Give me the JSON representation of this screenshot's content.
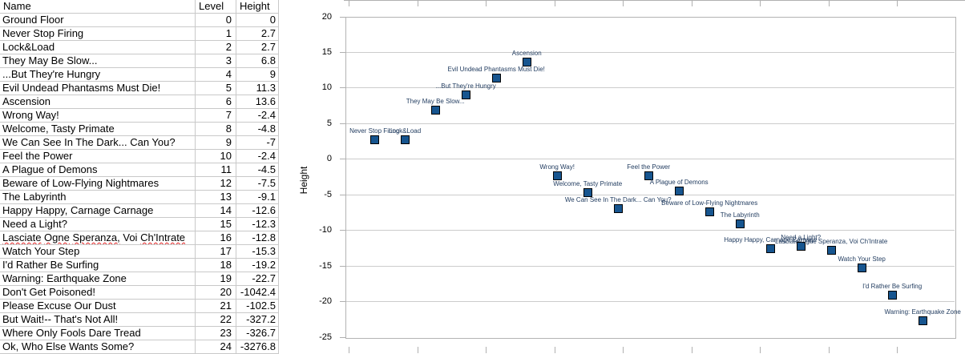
{
  "table": {
    "columns": [
      "Name",
      "Level",
      "Height"
    ],
    "rows": [
      {
        "name": "Ground Floor",
        "level": 0,
        "height": 0
      },
      {
        "name": "Never Stop Firing",
        "level": 1,
        "height": 2.7
      },
      {
        "name": "Lock&Load",
        "level": 2,
        "height": 2.7
      },
      {
        "name": "They May Be Slow...",
        "level": 3,
        "height": 6.8
      },
      {
        "name": "...But They're Hungry",
        "level": 4,
        "height": 9
      },
      {
        "name": "Evil Undead Phantasms Must Die!",
        "level": 5,
        "height": 11.3
      },
      {
        "name": "Ascension",
        "level": 6,
        "height": 13.6
      },
      {
        "name": "Wrong Way!",
        "level": 7,
        "height": -2.4
      },
      {
        "name": "Welcome, Tasty Primate",
        "level": 8,
        "height": -4.8
      },
      {
        "name": "We Can See In The Dark... Can You?",
        "level": 9,
        "height": -7
      },
      {
        "name": "Feel the Power",
        "level": 10,
        "height": -2.4
      },
      {
        "name": "A Plague of Demons",
        "level": 11,
        "height": -4.5
      },
      {
        "name": "Beware of Low-Flying Nightmares",
        "level": 12,
        "height": -7.5
      },
      {
        "name": "The Labyrinth",
        "level": 13,
        "height": -9.1
      },
      {
        "name": "Happy Happy, Carnage Carnage",
        "level": 14,
        "height": -12.6
      },
      {
        "name": "Need a Light?",
        "level": 15,
        "height": -12.3
      },
      {
        "name": "Lasciate Ogne Speranza, Voi Ch'Intrate",
        "level": 16,
        "height": -12.8,
        "misspelled": true
      },
      {
        "name": "Watch Your Step",
        "level": 17,
        "height": -15.3
      },
      {
        "name": "I'd Rather Be Surfing",
        "level": 18,
        "height": -19.2
      },
      {
        "name": "Warning: Earthquake Zone",
        "level": 19,
        "height": -22.7
      },
      {
        "name": "Don't Get Poisoned!",
        "level": 20,
        "height": -1042.4
      },
      {
        "name": "Please Excuse Our Dust",
        "level": 21,
        "height": -102.5
      },
      {
        "name": "But Wait!-- That's Not All!",
        "level": 22,
        "height": -327.2
      },
      {
        "name": "Where Only Fools Dare Tread",
        "level": 23,
        "height": -326.7
      },
      {
        "name": "Ok, Who Else Wants Some?",
        "level": 24,
        "height": -3276.8
      }
    ],
    "misspelled_words": [
      "Lasciate",
      "Ogne",
      "Speranza,",
      "Ch'Intrate"
    ]
  },
  "chart_data": {
    "type": "scatter",
    "title": "",
    "xlabel": "",
    "ylabel": "Height",
    "ylim": [
      -25,
      20
    ],
    "xlim": [
      0.5,
      20
    ],
    "y_ticks": [
      20,
      15,
      10,
      5,
      0,
      -5,
      -10,
      -15,
      -20,
      -25
    ],
    "grid": true,
    "legend": "none",
    "series": [
      {
        "name": "Height",
        "points": [
          {
            "label": "Ground Floor",
            "x": 0,
            "y": 0
          },
          {
            "label": "Never Stop Firing",
            "x": 1,
            "y": 2.7
          },
          {
            "label": "Lock&Load",
            "x": 2,
            "y": 2.7
          },
          {
            "label": "They May Be Slow...",
            "x": 3,
            "y": 6.8
          },
          {
            "label": "...But They're Hungry",
            "x": 4,
            "y": 9
          },
          {
            "label": "Evil Undead Phantasms Must Die!",
            "x": 5,
            "y": 11.3
          },
          {
            "label": "Ascension",
            "x": 6,
            "y": 13.6
          },
          {
            "label": "Wrong Way!",
            "x": 7,
            "y": -2.4
          },
          {
            "label": "Welcome, Tasty Primate",
            "x": 8,
            "y": -4.8
          },
          {
            "label": "We Can See In The Dark... Can You?",
            "x": 9,
            "y": -7
          },
          {
            "label": "Feel the Power",
            "x": 10,
            "y": -2.4
          },
          {
            "label": "A Plague of Demons",
            "x": 11,
            "y": -4.5
          },
          {
            "label": "Beware of Low-Flying Nightmares",
            "x": 12,
            "y": -7.5
          },
          {
            "label": "The Labyrinth",
            "x": 13,
            "y": -9.1
          },
          {
            "label": "Happy Happy, Carnage Carnage",
            "x": 14,
            "y": -12.6
          },
          {
            "label": "Need a Light?",
            "x": 15,
            "y": -12.3
          },
          {
            "label": "Lasciate Ogne Speranza, Voi Ch'Intrate",
            "x": 16,
            "y": -12.8
          },
          {
            "label": "Watch Your Step",
            "x": 17,
            "y": -15.3
          },
          {
            "label": "I'd Rather Be Surfing",
            "x": 18,
            "y": -19.2
          },
          {
            "label": "Warning: Earthquake Zone",
            "x": 19,
            "y": -22.7
          },
          {
            "label": "Don't Get Poisoned!",
            "x": 20,
            "y": -1042.4
          },
          {
            "label": "Please Excuse Our Dust",
            "x": 21,
            "y": -102.5
          },
          {
            "label": "But Wait!-- That's Not All!",
            "x": 22,
            "y": -327.2
          },
          {
            "label": "Where Only Fools Dare Tread",
            "x": 23,
            "y": -326.7
          },
          {
            "label": "Ok, Who Else Wants Some?",
            "x": 24,
            "y": -3276.8
          }
        ]
      }
    ],
    "point_color": "#17558f",
    "point_border_color": "#000000",
    "label_color": "#1f3a5e"
  }
}
